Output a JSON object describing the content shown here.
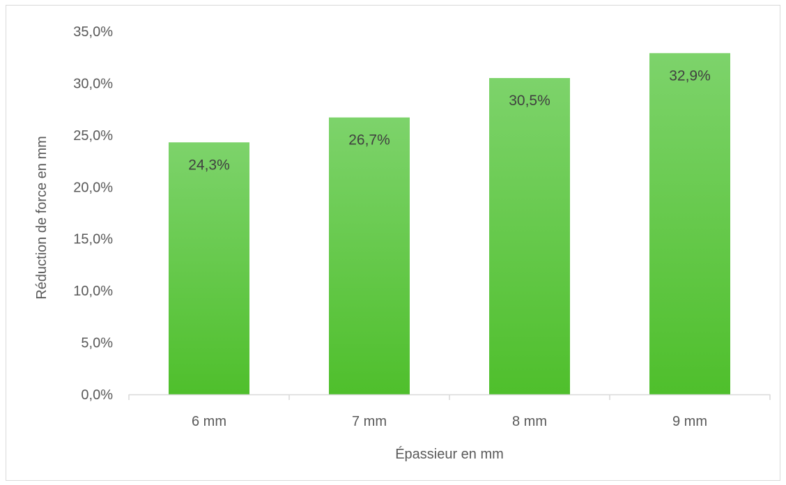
{
  "chart_data": {
    "type": "bar",
    "categories": [
      "6 mm",
      "7 mm",
      "8 mm",
      "9 mm"
    ],
    "values": [
      24.3,
      26.7,
      30.5,
      32.9
    ],
    "data_labels": [
      "24,3%",
      "26,7%",
      "30,5%",
      "32,9%"
    ],
    "xlabel": "Épassieur en mm",
    "ylabel": "Réduction de force en mm",
    "ylim": [
      0,
      35
    ],
    "y_ticks": [
      {
        "value": 0,
        "label": "0,0%"
      },
      {
        "value": 5,
        "label": "5,0%"
      },
      {
        "value": 10,
        "label": "10,0%"
      },
      {
        "value": 15,
        "label": "15,0%"
      },
      {
        "value": 20,
        "label": "20,0%"
      },
      {
        "value": 25,
        "label": "25,0%"
      },
      {
        "value": 30,
        "label": "30,0%"
      },
      {
        "value": 35,
        "label": "35,0%"
      }
    ],
    "grid": false,
    "legend": "none",
    "colors": {
      "bar_top": "#7dd36b",
      "bar_bottom": "#4fbf2c",
      "axis_line": "#d9d9d9",
      "text": "#595959",
      "data_label_text": "#404040"
    }
  }
}
